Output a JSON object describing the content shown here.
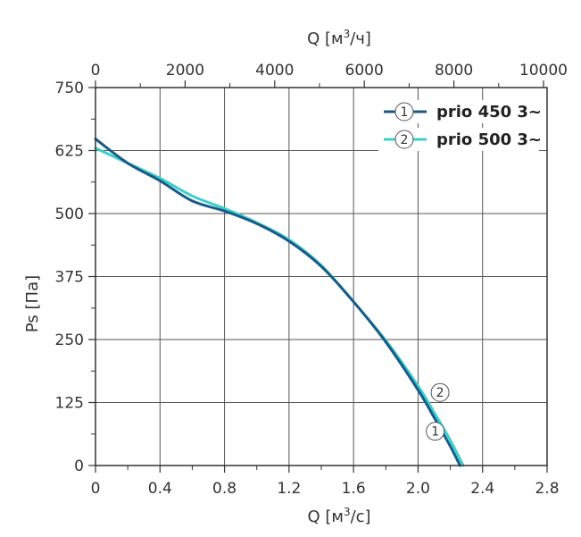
{
  "chart_data": {
    "type": "line",
    "x_axis_bottom": {
      "label": "Q [м³/с]",
      "label_main": "Q [м",
      "label_sup": "3",
      "label_tail": "/с]",
      "range": [
        0,
        2.8
      ],
      "ticks": [
        "0",
        "0.4",
        "0.8",
        "1.2",
        "1.6",
        "2.0",
        "2.4",
        "2.8"
      ],
      "tick_values": [
        0,
        0.4,
        0.8,
        1.2,
        1.6,
        2.0,
        2.4,
        2.8
      ]
    },
    "x_axis_top": {
      "label": "Q [м³/ч]",
      "label_main": "Q [м",
      "label_sup": "3",
      "label_tail": "/ч]",
      "range": [
        0,
        10080
      ],
      "ticks": [
        "0",
        "2000",
        "4000",
        "6000",
        "8000",
        "10000"
      ],
      "tick_values": [
        0,
        2000,
        4000,
        6000,
        8000,
        10000
      ]
    },
    "y_axis": {
      "label": "Ps [Па]",
      "range": [
        0,
        750
      ],
      "ticks": [
        "0",
        "125",
        "250",
        "375",
        "500",
        "625",
        "750"
      ],
      "tick_values": [
        0,
        125,
        250,
        375,
        500,
        625,
        750
      ]
    },
    "grid": true,
    "legend_position": "top-right",
    "series": [
      {
        "name": "prio 450 3~",
        "marker": "1",
        "color": "#1a5a8a",
        "x": [
          0,
          0.2,
          0.4,
          0.6,
          0.8,
          1.0,
          1.2,
          1.4,
          1.6,
          1.8,
          2.0,
          2.1,
          2.2,
          2.26
        ],
        "y": [
          648,
          600,
          565,
          525,
          505,
          480,
          445,
          395,
          325,
          245,
          150,
          95,
          38,
          0
        ],
        "marker_at": [
          2.04,
          68
        ]
      },
      {
        "name": "prio 500 3~",
        "marker": "2",
        "color": "#3ad0cc",
        "x": [
          0,
          0.2,
          0.4,
          0.6,
          0.8,
          1.0,
          1.2,
          1.4,
          1.6,
          1.8,
          2.0,
          2.1,
          2.2,
          2.28
        ],
        "y": [
          630,
          600,
          570,
          535,
          510,
          482,
          448,
          397,
          325,
          248,
          158,
          105,
          50,
          0
        ],
        "marker_at": [
          2.07,
          145
        ]
      }
    ]
  }
}
